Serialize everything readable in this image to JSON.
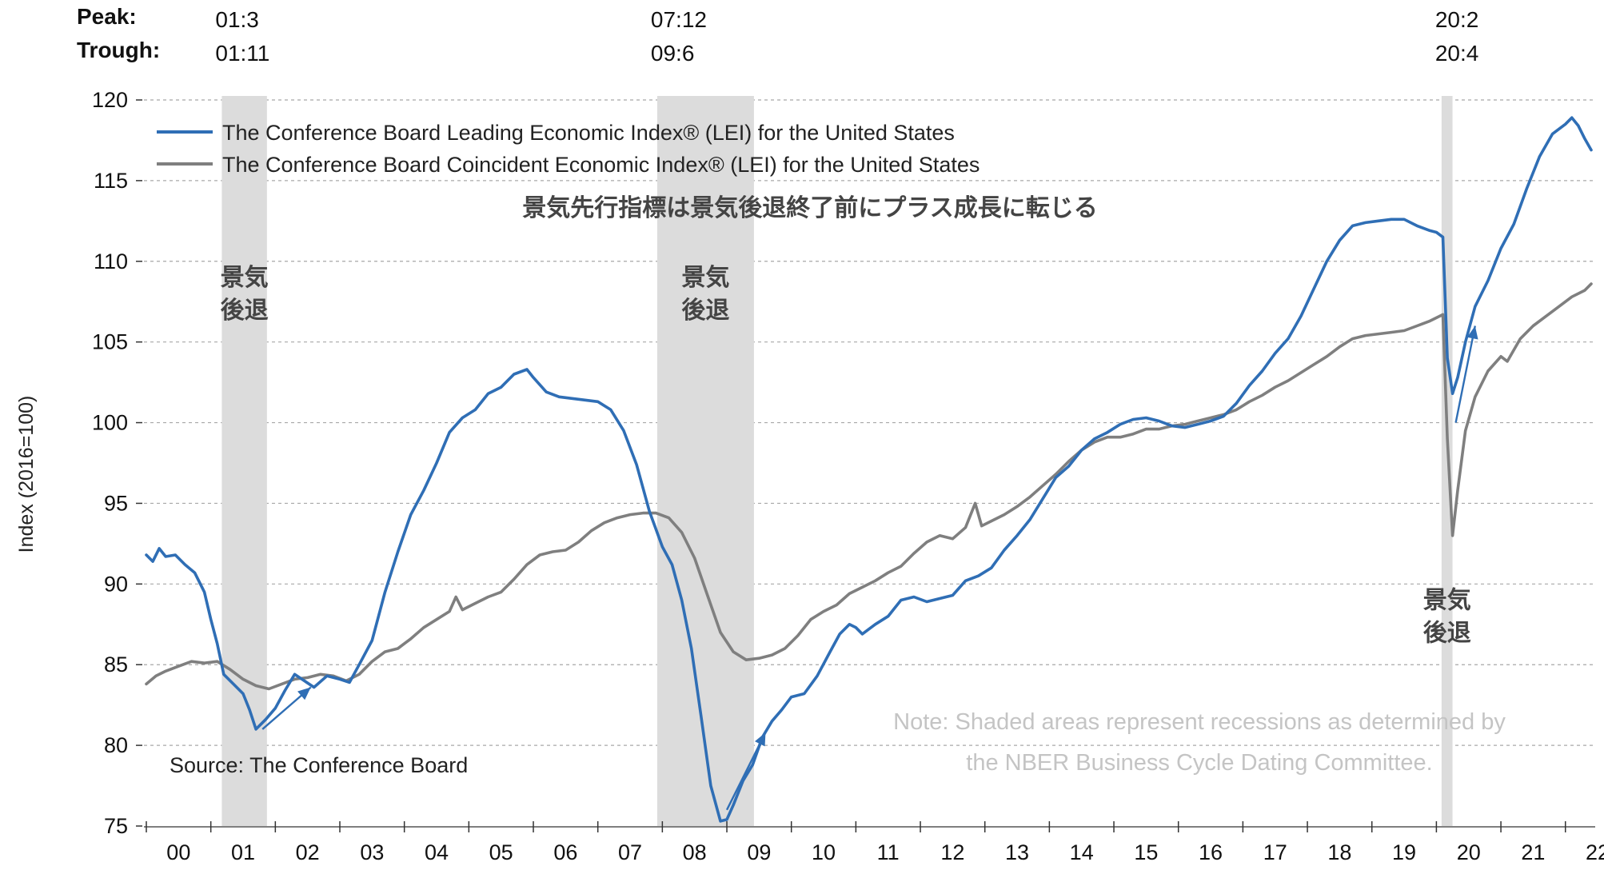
{
  "chart_data": {
    "type": "line",
    "title": "景気先行指標は景気後退終了前にプラス成長に転じる",
    "ylabel": "Index (2016=100)",
    "xlabel": "",
    "ylim": [
      75,
      120
    ],
    "xlim": [
      2000.0,
      2022.4
    ],
    "yticks": [
      75,
      80,
      85,
      90,
      95,
      100,
      105,
      110,
      115,
      120
    ],
    "xticks": [
      {
        "label": "00",
        "value": 2000.5
      },
      {
        "label": "01",
        "value": 2001.5
      },
      {
        "label": "02",
        "value": 2002.5
      },
      {
        "label": "03",
        "value": 2003.5
      },
      {
        "label": "04",
        "value": 2004.5
      },
      {
        "label": "05",
        "value": 2005.5
      },
      {
        "label": "06",
        "value": 2006.5
      },
      {
        "label": "07",
        "value": 2007.5
      },
      {
        "label": "08",
        "value": 2008.5
      },
      {
        "label": "09",
        "value": 2009.5
      },
      {
        "label": "10",
        "value": 2010.5
      },
      {
        "label": "11",
        "value": 2011.5
      },
      {
        "label": "12",
        "value": 2012.5
      },
      {
        "label": "13",
        "value": 2013.5
      },
      {
        "label": "14",
        "value": 2014.5
      },
      {
        "label": "15",
        "value": 2015.5
      },
      {
        "label": "16",
        "value": 2016.5
      },
      {
        "label": "17",
        "value": 2017.5
      },
      {
        "label": "18",
        "value": 2018.5
      },
      {
        "label": "19",
        "value": 2019.5
      },
      {
        "label": "20",
        "value": 2020.5
      },
      {
        "label": "21",
        "value": 2021.5
      },
      {
        "label": "22",
        "value": 2022.5
      }
    ],
    "grid": "horizontal-dashed",
    "legend_position": "top-left",
    "header": {
      "peak_label": "Peak:",
      "trough_label": "Trough:"
    },
    "recessions": [
      {
        "start": 2001.17,
        "end": 2001.87,
        "peak_text": "01:3",
        "trough_text": "01:11",
        "label": "景気\n後退",
        "label_y": 108.5
      },
      {
        "start": 2007.92,
        "end": 2009.42,
        "peak_text": "07:12",
        "trough_text": "09:6",
        "label": "景気\n後退",
        "label_y": 108.5
      },
      {
        "start": 2020.08,
        "end": 2020.25,
        "peak_text": "20:2",
        "trough_text": "20:4",
        "label": "景気\n後退",
        "label_y": 88.5
      }
    ],
    "arrows": [
      {
        "x1": 2001.8,
        "y1": 81.0,
        "x2": 2002.55,
        "y2": 83.6
      },
      {
        "x1": 2009.0,
        "y1": 76.0,
        "x2": 2009.6,
        "y2": 80.8
      },
      {
        "x1": 2020.3,
        "y1": 100.0,
        "x2": 2020.6,
        "y2": 106.0
      }
    ],
    "series": [
      {
        "name": "The Conference Board Leading Economic Index® (LEI) for the United States",
        "color": "#2f6eb5",
        "points": [
          [
            2000.0,
            91.8
          ],
          [
            2000.1,
            91.4
          ],
          [
            2000.2,
            92.2
          ],
          [
            2000.3,
            91.7
          ],
          [
            2000.45,
            91.8
          ],
          [
            2000.6,
            91.2
          ],
          [
            2000.75,
            90.7
          ],
          [
            2000.9,
            89.5
          ],
          [
            2001.0,
            87.8
          ],
          [
            2001.1,
            86.3
          ],
          [
            2001.2,
            84.4
          ],
          [
            2001.35,
            83.8
          ],
          [
            2001.5,
            83.2
          ],
          [
            2001.6,
            82.2
          ],
          [
            2001.7,
            81.0
          ],
          [
            2001.85,
            81.6
          ],
          [
            2002.0,
            82.3
          ],
          [
            2002.15,
            83.4
          ],
          [
            2002.3,
            84.4
          ],
          [
            2002.45,
            84.0
          ],
          [
            2002.6,
            83.6
          ],
          [
            2002.8,
            84.3
          ],
          [
            2003.0,
            84.1
          ],
          [
            2003.15,
            83.9
          ],
          [
            2003.3,
            85.0
          ],
          [
            2003.5,
            86.5
          ],
          [
            2003.7,
            89.5
          ],
          [
            2003.9,
            92.0
          ],
          [
            2004.1,
            94.3
          ],
          [
            2004.3,
            95.8
          ],
          [
            2004.5,
            97.5
          ],
          [
            2004.7,
            99.4
          ],
          [
            2004.9,
            100.3
          ],
          [
            2005.1,
            100.8
          ],
          [
            2005.3,
            101.8
          ],
          [
            2005.5,
            102.2
          ],
          [
            2005.7,
            103.0
          ],
          [
            2005.9,
            103.3
          ],
          [
            2006.0,
            102.8
          ],
          [
            2006.2,
            101.9
          ],
          [
            2006.4,
            101.6
          ],
          [
            2006.6,
            101.5
          ],
          [
            2006.8,
            101.4
          ],
          [
            2007.0,
            101.3
          ],
          [
            2007.2,
            100.8
          ],
          [
            2007.4,
            99.5
          ],
          [
            2007.6,
            97.4
          ],
          [
            2007.8,
            94.5
          ],
          [
            2008.0,
            92.3
          ],
          [
            2008.15,
            91.2
          ],
          [
            2008.3,
            89.0
          ],
          [
            2008.45,
            86.0
          ],
          [
            2008.6,
            81.8
          ],
          [
            2008.75,
            77.5
          ],
          [
            2008.9,
            75.3
          ],
          [
            2009.0,
            75.4
          ],
          [
            2009.1,
            76.3
          ],
          [
            2009.25,
            77.8
          ],
          [
            2009.4,
            78.8
          ],
          [
            2009.55,
            80.5
          ],
          [
            2009.7,
            81.5
          ],
          [
            2009.85,
            82.2
          ],
          [
            2010.0,
            83.0
          ],
          [
            2010.2,
            83.2
          ],
          [
            2010.4,
            84.3
          ],
          [
            2010.6,
            85.8
          ],
          [
            2010.75,
            86.9
          ],
          [
            2010.9,
            87.5
          ],
          [
            2011.0,
            87.3
          ],
          [
            2011.1,
            86.9
          ],
          [
            2011.3,
            87.5
          ],
          [
            2011.5,
            88.0
          ],
          [
            2011.7,
            89.0
          ],
          [
            2011.9,
            89.2
          ],
          [
            2012.1,
            88.9
          ],
          [
            2012.3,
            89.1
          ],
          [
            2012.5,
            89.3
          ],
          [
            2012.7,
            90.2
          ],
          [
            2012.9,
            90.5
          ],
          [
            2013.1,
            91.0
          ],
          [
            2013.3,
            92.1
          ],
          [
            2013.5,
            93.0
          ],
          [
            2013.7,
            94.0
          ],
          [
            2013.9,
            95.3
          ],
          [
            2014.1,
            96.6
          ],
          [
            2014.3,
            97.3
          ],
          [
            2014.5,
            98.3
          ],
          [
            2014.7,
            99.0
          ],
          [
            2014.9,
            99.4
          ],
          [
            2015.1,
            99.9
          ],
          [
            2015.3,
            100.2
          ],
          [
            2015.5,
            100.3
          ],
          [
            2015.7,
            100.1
          ],
          [
            2015.9,
            99.8
          ],
          [
            2016.1,
            99.7
          ],
          [
            2016.3,
            99.9
          ],
          [
            2016.5,
            100.1
          ],
          [
            2016.7,
            100.4
          ],
          [
            2016.9,
            101.2
          ],
          [
            2017.1,
            102.3
          ],
          [
            2017.3,
            103.2
          ],
          [
            2017.5,
            104.3
          ],
          [
            2017.7,
            105.2
          ],
          [
            2017.9,
            106.6
          ],
          [
            2018.1,
            108.3
          ],
          [
            2018.3,
            110.0
          ],
          [
            2018.5,
            111.3
          ],
          [
            2018.7,
            112.2
          ],
          [
            2018.9,
            112.4
          ],
          [
            2019.1,
            112.5
          ],
          [
            2019.3,
            112.6
          ],
          [
            2019.5,
            112.6
          ],
          [
            2019.7,
            112.2
          ],
          [
            2019.9,
            111.9
          ],
          [
            2020.0,
            111.8
          ],
          [
            2020.1,
            111.5
          ],
          [
            2020.17,
            104.0
          ],
          [
            2020.25,
            101.8
          ],
          [
            2020.33,
            102.8
          ],
          [
            2020.45,
            105.0
          ],
          [
            2020.6,
            107.2
          ],
          [
            2020.8,
            108.8
          ],
          [
            2021.0,
            110.8
          ],
          [
            2021.2,
            112.3
          ],
          [
            2021.4,
            114.5
          ],
          [
            2021.6,
            116.5
          ],
          [
            2021.8,
            117.9
          ],
          [
            2022.0,
            118.5
          ],
          [
            2022.1,
            118.9
          ],
          [
            2022.2,
            118.4
          ],
          [
            2022.3,
            117.6
          ],
          [
            2022.4,
            116.9
          ]
        ]
      },
      {
        "name": "The Conference Board Coincident Economic Index® (LEI) for the United States",
        "color": "#7f7f7f",
        "points": [
          [
            2000.0,
            83.8
          ],
          [
            2000.15,
            84.3
          ],
          [
            2000.3,
            84.6
          ],
          [
            2000.5,
            84.9
          ],
          [
            2000.7,
            85.2
          ],
          [
            2000.9,
            85.1
          ],
          [
            2001.1,
            85.2
          ],
          [
            2001.3,
            84.7
          ],
          [
            2001.5,
            84.1
          ],
          [
            2001.7,
            83.7
          ],
          [
            2001.9,
            83.5
          ],
          [
            2002.1,
            83.8
          ],
          [
            2002.3,
            84.1
          ],
          [
            2002.5,
            84.2
          ],
          [
            2002.7,
            84.4
          ],
          [
            2002.9,
            84.3
          ],
          [
            2003.1,
            84.0
          ],
          [
            2003.3,
            84.4
          ],
          [
            2003.5,
            85.2
          ],
          [
            2003.7,
            85.8
          ],
          [
            2003.9,
            86.0
          ],
          [
            2004.1,
            86.6
          ],
          [
            2004.3,
            87.3
          ],
          [
            2004.5,
            87.8
          ],
          [
            2004.7,
            88.3
          ],
          [
            2004.8,
            89.2
          ],
          [
            2004.9,
            88.4
          ],
          [
            2005.1,
            88.8
          ],
          [
            2005.3,
            89.2
          ],
          [
            2005.5,
            89.5
          ],
          [
            2005.7,
            90.3
          ],
          [
            2005.9,
            91.2
          ],
          [
            2006.1,
            91.8
          ],
          [
            2006.3,
            92.0
          ],
          [
            2006.5,
            92.1
          ],
          [
            2006.7,
            92.6
          ],
          [
            2006.9,
            93.3
          ],
          [
            2007.1,
            93.8
          ],
          [
            2007.3,
            94.1
          ],
          [
            2007.5,
            94.3
          ],
          [
            2007.7,
            94.4
          ],
          [
            2007.9,
            94.4
          ],
          [
            2008.1,
            94.1
          ],
          [
            2008.3,
            93.2
          ],
          [
            2008.5,
            91.6
          ],
          [
            2008.7,
            89.3
          ],
          [
            2008.9,
            87.0
          ],
          [
            2009.1,
            85.8
          ],
          [
            2009.3,
            85.3
          ],
          [
            2009.5,
            85.4
          ],
          [
            2009.7,
            85.6
          ],
          [
            2009.9,
            86.0
          ],
          [
            2010.1,
            86.8
          ],
          [
            2010.3,
            87.8
          ],
          [
            2010.5,
            88.3
          ],
          [
            2010.7,
            88.7
          ],
          [
            2010.9,
            89.4
          ],
          [
            2011.1,
            89.8
          ],
          [
            2011.3,
            90.2
          ],
          [
            2011.5,
            90.7
          ],
          [
            2011.7,
            91.1
          ],
          [
            2011.9,
            91.9
          ],
          [
            2012.1,
            92.6
          ],
          [
            2012.3,
            93.0
          ],
          [
            2012.5,
            92.8
          ],
          [
            2012.7,
            93.5
          ],
          [
            2012.85,
            95.0
          ],
          [
            2012.95,
            93.6
          ],
          [
            2013.1,
            93.9
          ],
          [
            2013.3,
            94.3
          ],
          [
            2013.5,
            94.8
          ],
          [
            2013.7,
            95.4
          ],
          [
            2013.9,
            96.1
          ],
          [
            2014.1,
            96.8
          ],
          [
            2014.3,
            97.6
          ],
          [
            2014.5,
            98.3
          ],
          [
            2014.7,
            98.8
          ],
          [
            2014.9,
            99.1
          ],
          [
            2015.1,
            99.1
          ],
          [
            2015.3,
            99.3
          ],
          [
            2015.5,
            99.6
          ],
          [
            2015.7,
            99.6
          ],
          [
            2015.9,
            99.8
          ],
          [
            2016.1,
            99.9
          ],
          [
            2016.3,
            100.1
          ],
          [
            2016.5,
            100.3
          ],
          [
            2016.7,
            100.5
          ],
          [
            2016.9,
            100.8
          ],
          [
            2017.1,
            101.3
          ],
          [
            2017.3,
            101.7
          ],
          [
            2017.5,
            102.2
          ],
          [
            2017.7,
            102.6
          ],
          [
            2017.9,
            103.1
          ],
          [
            2018.1,
            103.6
          ],
          [
            2018.3,
            104.1
          ],
          [
            2018.5,
            104.7
          ],
          [
            2018.7,
            105.2
          ],
          [
            2018.9,
            105.4
          ],
          [
            2019.1,
            105.5
          ],
          [
            2019.3,
            105.6
          ],
          [
            2019.5,
            105.7
          ],
          [
            2019.7,
            106.0
          ],
          [
            2019.9,
            106.3
          ],
          [
            2020.1,
            106.7
          ],
          [
            2020.17,
            99.0
          ],
          [
            2020.25,
            93.0
          ],
          [
            2020.33,
            95.8
          ],
          [
            2020.45,
            99.5
          ],
          [
            2020.6,
            101.6
          ],
          [
            2020.8,
            103.2
          ],
          [
            2021.0,
            104.1
          ],
          [
            2021.1,
            103.8
          ],
          [
            2021.3,
            105.2
          ],
          [
            2021.5,
            106.0
          ],
          [
            2021.7,
            106.6
          ],
          [
            2021.9,
            107.2
          ],
          [
            2022.1,
            107.8
          ],
          [
            2022.3,
            108.2
          ],
          [
            2022.4,
            108.6
          ]
        ]
      }
    ],
    "source": "Source: The Conference Board",
    "note_line1": "Note: Shaded areas represent recessions as determined by",
    "note_line2": "the NBER Business Cycle Dating Committee."
  }
}
